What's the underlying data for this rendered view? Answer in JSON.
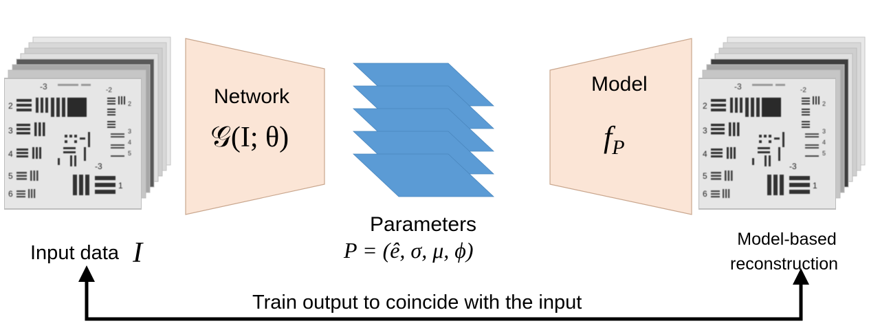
{
  "network": {
    "title": "Network",
    "formula": "𝒢(I; θ)",
    "fill": "#fbe5d6",
    "stroke": "#c9a68d"
  },
  "model": {
    "title": "Model",
    "formula_base": "f",
    "formula_sub": "P",
    "fill": "#fbe5d6",
    "stroke": "#c9a68d"
  },
  "parameters": {
    "title": "Parameters",
    "formula": "P = (ê, σ, μ, ϕ)",
    "layer_fill": "#5b9bd5",
    "layer_count": 5
  },
  "input": {
    "label": "Input data",
    "symbol": "I",
    "chart_numbers": {
      "top": "-3",
      "right_top": "-2",
      "rows": [
        "2",
        "3",
        "4",
        "5",
        "6"
      ],
      "center_bottom": "-3",
      "right_bottom": "1",
      "right_mid": [
        "3",
        "4",
        "5"
      ]
    }
  },
  "output": {
    "label_line1": "Model-based",
    "label_line2": "reconstruction"
  },
  "feedback": {
    "label": "Train output to coincide with the input",
    "arrow_color": "#000000"
  }
}
